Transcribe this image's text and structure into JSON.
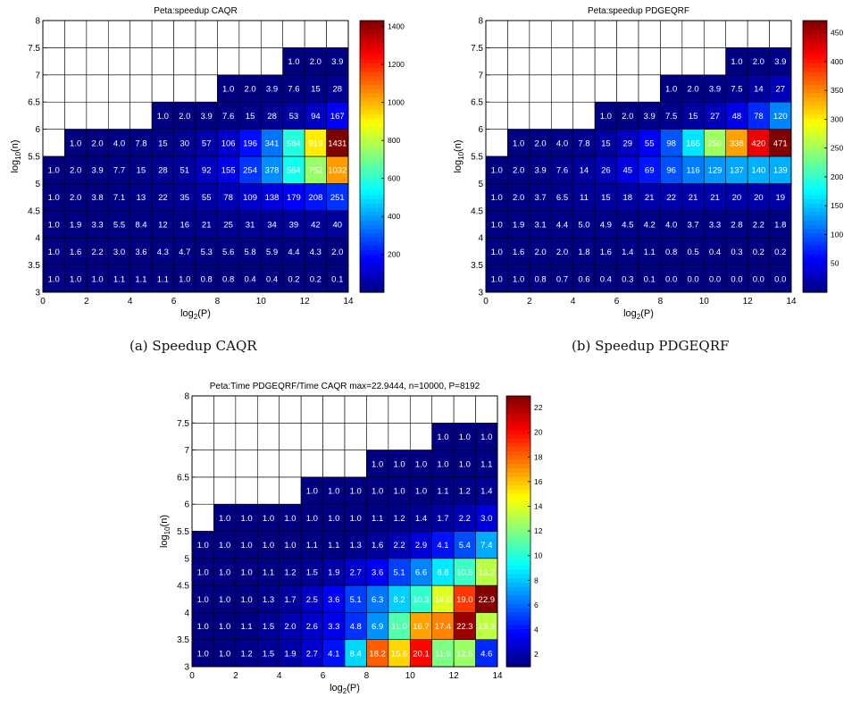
{
  "captions": [
    "(a) Speedup CAQR",
    "(b) Speedup PDGEQRF"
  ],
  "chart_data": [
    {
      "type": "heatmap",
      "title": "Peta:speedup CAQR",
      "xlabel": "log2(P)",
      "ylabel": "log10(n)",
      "xlim": [
        0,
        14
      ],
      "ylim": [
        3,
        8
      ],
      "x_ticks": [
        "0",
        "2",
        "4",
        "6",
        "8",
        "10",
        "12",
        "14"
      ],
      "y_ticks": [
        "3",
        "3.5",
        "4",
        "4.5",
        "5",
        "5.5",
        "6",
        "6.5",
        "7",
        "7.5",
        "8"
      ],
      "colorbar_ticks": [
        "200",
        "400",
        "600",
        "800",
        "1000",
        "1200",
        "1400"
      ],
      "colorbar_range": [
        1,
        1431
      ],
      "colormap": "jet",
      "rows": [
        {
          "log10_n": 3.0,
          "log2_p_start": 0,
          "values": [
            "1.0",
            "1.0",
            "1.0",
            "1.1",
            "1.1",
            "1.1",
            "1.0",
            "0.8",
            "0.8",
            "0.4",
            "0.4",
            "0.2",
            "0.2",
            "0.1"
          ]
        },
        {
          "log10_n": 3.5,
          "log2_p_start": 0,
          "values": [
            "1.0",
            "1.6",
            "2.2",
            "3.0",
            "3.6",
            "4.3",
            "4.7",
            "5.3",
            "5.6",
            "5.8",
            "5.9",
            "4.4",
            "4.3",
            "2.0"
          ]
        },
        {
          "log10_n": 4.0,
          "log2_p_start": 0,
          "values": [
            "1.0",
            "1.9",
            "3.3",
            "5.5",
            "8.4",
            "12",
            "16",
            "21",
            "25",
            "31",
            "34",
            "39",
            "42",
            "40"
          ]
        },
        {
          "log10_n": 4.5,
          "log2_p_start": 0,
          "values": [
            "1.0",
            "2.0",
            "3.8",
            "7.1",
            "13",
            "22",
            "35",
            "55",
            "78",
            "109",
            "138",
            "179",
            "208",
            "251"
          ]
        },
        {
          "log10_n": 5.0,
          "log2_p_start": 0,
          "values": [
            "1.0",
            "2.0",
            "3.9",
            "7.7",
            "15",
            "28",
            "51",
            "92",
            "155",
            "254",
            "378",
            "564",
            "752",
            "1032"
          ]
        },
        {
          "log10_n": 5.5,
          "log2_p_start": 1,
          "values": [
            "1.0",
            "2.0",
            "4.0",
            "7.8",
            "15",
            "30",
            "57",
            "106",
            "196",
            "341",
            "584",
            "919",
            "1431"
          ]
        },
        {
          "log10_n": 6.0,
          "log2_p_start": 5,
          "values": [
            "1.0",
            "2.0",
            "3.9",
            "7.6",
            "15",
            "28",
            "53",
            "94",
            "167"
          ]
        },
        {
          "log10_n": 6.5,
          "log2_p_start": 8,
          "values": [
            "1.0",
            "2.0",
            "3.9",
            "7.6",
            "15",
            "28"
          ]
        },
        {
          "log10_n": 7.0,
          "log2_p_start": 11,
          "values": [
            "1.0",
            "2.0",
            "3.9"
          ]
        }
      ]
    },
    {
      "type": "heatmap",
      "title": "Peta:speedup PDGEQRF",
      "xlabel": "log2(P)",
      "ylabel": "log10(n)",
      "xlim": [
        0,
        14
      ],
      "ylim": [
        3,
        8
      ],
      "x_ticks": [
        "0",
        "2",
        "4",
        "6",
        "8",
        "10",
        "12",
        "14"
      ],
      "y_ticks": [
        "3",
        "3.5",
        "4",
        "4.5",
        "5",
        "5.5",
        "6",
        "6.5",
        "7",
        "7.5",
        "8"
      ],
      "colorbar_ticks": [
        "50",
        "100",
        "150",
        "200",
        "250",
        "300",
        "350",
        "400",
        "450"
      ],
      "colorbar_range": [
        0,
        471
      ],
      "colormap": "jet",
      "rows": [
        {
          "log10_n": 3.0,
          "log2_p_start": 0,
          "values": [
            "1.0",
            "1.0",
            "0.8",
            "0.7",
            "0.6",
            "0.4",
            "0.3",
            "0.1",
            "0.0",
            "0.0",
            "0.0",
            "0.0",
            "0.0",
            "0.0"
          ]
        },
        {
          "log10_n": 3.5,
          "log2_p_start": 0,
          "values": [
            "1.0",
            "1.6",
            "2.0",
            "2.0",
            "1.8",
            "1.6",
            "1.4",
            "1.1",
            "0.8",
            "0.5",
            "0.4",
            "0.3",
            "0.2",
            "0.2"
          ]
        },
        {
          "log10_n": 4.0,
          "log2_p_start": 0,
          "values": [
            "1.0",
            "1.9",
            "3.1",
            "4.4",
            "5.0",
            "4.9",
            "4.5",
            "4.2",
            "4.0",
            "3.7",
            "3.3",
            "2.8",
            "2.2",
            "1.8"
          ]
        },
        {
          "log10_n": 4.5,
          "log2_p_start": 0,
          "values": [
            "1.0",
            "2.0",
            "3.7",
            "6.5",
            "11",
            "15",
            "18",
            "21",
            "22",
            "21",
            "21",
            "20",
            "20",
            "19"
          ]
        },
        {
          "log10_n": 5.0,
          "log2_p_start": 0,
          "values": [
            "1.0",
            "2.0",
            "3.9",
            "7.6",
            "14",
            "26",
            "45",
            "69",
            "96",
            "116",
            "129",
            "137",
            "140",
            "139"
          ]
        },
        {
          "log10_n": 5.5,
          "log2_p_start": 1,
          "values": [
            "1.0",
            "2.0",
            "4.0",
            "7.8",
            "15",
            "29",
            "55",
            "98",
            "165",
            "250",
            "338",
            "420",
            "471"
          ]
        },
        {
          "log10_n": 6.0,
          "log2_p_start": 5,
          "values": [
            "1.0",
            "2.0",
            "3.9",
            "7.5",
            "15",
            "27",
            "48",
            "78",
            "120"
          ]
        },
        {
          "log10_n": 6.5,
          "log2_p_start": 8,
          "values": [
            "1.0",
            "2.0",
            "3.9",
            "7.5",
            "14",
            "27"
          ]
        },
        {
          "log10_n": 7.0,
          "log2_p_start": 11,
          "values": [
            "1.0",
            "2.0",
            "3.9"
          ]
        }
      ]
    },
    {
      "type": "heatmap",
      "title": "Peta:Time PDGEQRF/Time CAQR  max=22.9444, n=10000, P=8192",
      "xlabel": "log2(P)",
      "ylabel": "log10(n)",
      "xlim": [
        0,
        14
      ],
      "ylim": [
        3,
        8
      ],
      "x_ticks": [
        "0",
        "2",
        "4",
        "6",
        "8",
        "10",
        "12",
        "14"
      ],
      "y_ticks": [
        "3",
        "3.5",
        "4",
        "4.5",
        "5",
        "5.5",
        "6",
        "6.5",
        "7",
        "7.5",
        "8"
      ],
      "colorbar_ticks": [
        "2",
        "4",
        "6",
        "8",
        "10",
        "12",
        "14",
        "16",
        "18",
        "20",
        "22"
      ],
      "colorbar_range": [
        1,
        22.9444
      ],
      "colormap": "jet",
      "rows": [
        {
          "log10_n": 3.0,
          "log2_p_start": 0,
          "values": [
            "1.0",
            "1.0",
            "1.2",
            "1.5",
            "1.9",
            "2.7",
            "4.1",
            "8.4",
            "18.2",
            "15.6",
            "20.1",
            "11.9",
            "12.5",
            "4.6"
          ]
        },
        {
          "log10_n": 3.5,
          "log2_p_start": 0,
          "values": [
            "1.0",
            "1.0",
            "1.1",
            "1.5",
            "2.0",
            "2.6",
            "3.3",
            "4.8",
            "6.9",
            "11.0",
            "16.7",
            "17.4",
            "22.3",
            "13.3"
          ]
        },
        {
          "log10_n": 4.0,
          "log2_p_start": 0,
          "values": [
            "1.0",
            "1.0",
            "1.0",
            "1.3",
            "1.7",
            "2.5",
            "3.6",
            "5.1",
            "6.3",
            "8.2",
            "10.3",
            "14.0",
            "19.0",
            "22.9"
          ]
        },
        {
          "log10_n": 4.5,
          "log2_p_start": 0,
          "values": [
            "1.0",
            "1.0",
            "1.0",
            "1.1",
            "1.2",
            "1.5",
            "1.9",
            "2.7",
            "3.6",
            "5.1",
            "6.6",
            "8.8",
            "10.5",
            "13.2"
          ]
        },
        {
          "log10_n": 5.0,
          "log2_p_start": 0,
          "values": [
            "1.0",
            "1.0",
            "1.0",
            "1.0",
            "1.0",
            "1.1",
            "1.1",
            "1.3",
            "1.6",
            "2.2",
            "2.9",
            "4.1",
            "5.4",
            "7.4"
          ]
        },
        {
          "log10_n": 5.5,
          "log2_p_start": 1,
          "values": [
            "1.0",
            "1.0",
            "1.0",
            "1.0",
            "1.0",
            "1.0",
            "1.0",
            "1.1",
            "1.2",
            "1.4",
            "1.7",
            "2.2",
            "3.0"
          ]
        },
        {
          "log10_n": 6.0,
          "log2_p_start": 5,
          "values": [
            "1.0",
            "1.0",
            "1.0",
            "1.0",
            "1.0",
            "1.0",
            "1.1",
            "1.2",
            "1.4"
          ]
        },
        {
          "log10_n": 6.5,
          "log2_p_start": 8,
          "values": [
            "1.0",
            "1.0",
            "1.0",
            "1.0",
            "1.0",
            "1.1"
          ]
        },
        {
          "log10_n": 7.0,
          "log2_p_start": 11,
          "values": [
            "1.0",
            "1.0",
            "1.0"
          ]
        }
      ]
    }
  ]
}
